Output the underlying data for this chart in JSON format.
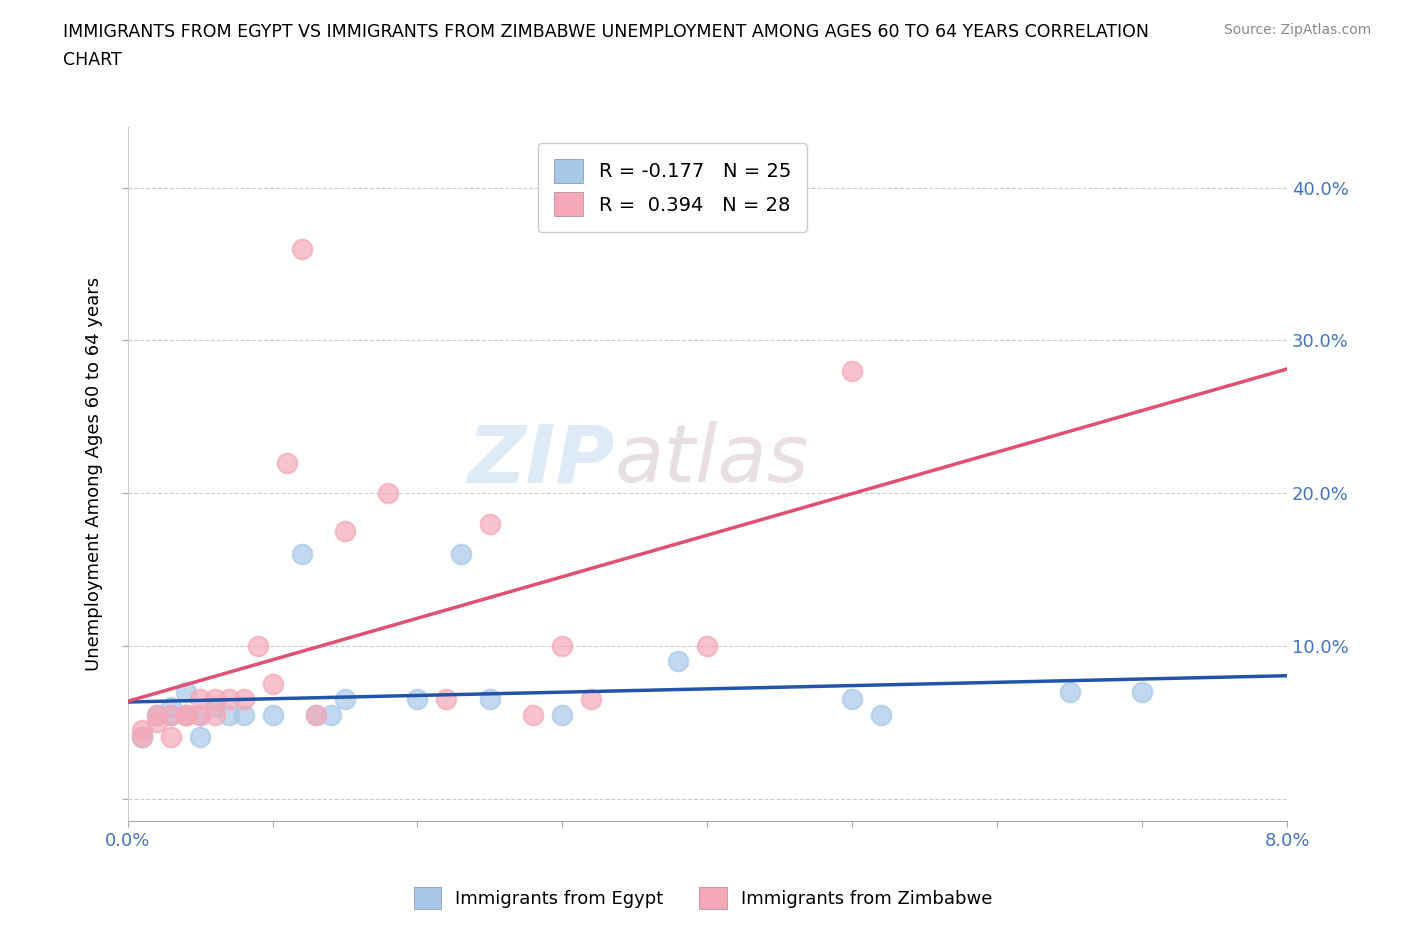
{
  "title_line1": "IMMIGRANTS FROM EGYPT VS IMMIGRANTS FROM ZIMBABWE UNEMPLOYMENT AMONG AGES 60 TO 64 YEARS CORRELATION",
  "title_line2": "CHART",
  "source_text": "Source: ZipAtlas.com",
  "ylabel": "Unemployment Among Ages 60 to 64 years",
  "xlim": [
    0.0,
    0.08
  ],
  "ylim": [
    -0.015,
    0.44
  ],
  "xticks": [
    0.0,
    0.01,
    0.02,
    0.03,
    0.04,
    0.05,
    0.06,
    0.07,
    0.08
  ],
  "xtick_labels": [
    "0.0%",
    "",
    "",
    "",
    "",
    "",
    "",
    "",
    "8.0%"
  ],
  "yticks": [
    0.0,
    0.1,
    0.2,
    0.3,
    0.4
  ],
  "ytick_labels_right": [
    "",
    "10.0%",
    "20.0%",
    "30.0%",
    "40.0%"
  ],
  "egypt_color": "#a8c8e8",
  "zimbabwe_color": "#f4a8b8",
  "egypt_line_color": "#2255aa",
  "zimbabwe_line_color": "#e05070",
  "egypt_line_color_dashed": "#cccccc",
  "legend_label_egypt": "R = -0.177   N = 25",
  "legend_label_zimbabwe": "R =  0.394   N = 28",
  "watermark_zip": "ZIP",
  "watermark_atlas": "atlas",
  "egypt_x": [
    0.001,
    0.002,
    0.003,
    0.003,
    0.004,
    0.004,
    0.005,
    0.005,
    0.006,
    0.007,
    0.008,
    0.01,
    0.012,
    0.013,
    0.014,
    0.015,
    0.02,
    0.023,
    0.025,
    0.03,
    0.038,
    0.05,
    0.052,
    0.065,
    0.07
  ],
  "egypt_y": [
    0.04,
    0.055,
    0.06,
    0.055,
    0.055,
    0.07,
    0.055,
    0.04,
    0.06,
    0.055,
    0.055,
    0.055,
    0.16,
    0.055,
    0.055,
    0.065,
    0.065,
    0.16,
    0.065,
    0.055,
    0.09,
    0.065,
    0.055,
    0.07,
    0.07
  ],
  "zimbabwe_x": [
    0.001,
    0.001,
    0.002,
    0.002,
    0.003,
    0.003,
    0.004,
    0.004,
    0.005,
    0.005,
    0.006,
    0.006,
    0.007,
    0.008,
    0.009,
    0.01,
    0.011,
    0.012,
    0.013,
    0.015,
    0.018,
    0.022,
    0.025,
    0.028,
    0.03,
    0.032,
    0.04,
    0.05
  ],
  "zimbabwe_y": [
    0.045,
    0.04,
    0.05,
    0.055,
    0.055,
    0.04,
    0.055,
    0.055,
    0.055,
    0.065,
    0.055,
    0.065,
    0.065,
    0.065,
    0.1,
    0.075,
    0.22,
    0.36,
    0.055,
    0.175,
    0.2,
    0.065,
    0.18,
    0.055,
    0.1,
    0.065,
    0.1,
    0.28
  ]
}
